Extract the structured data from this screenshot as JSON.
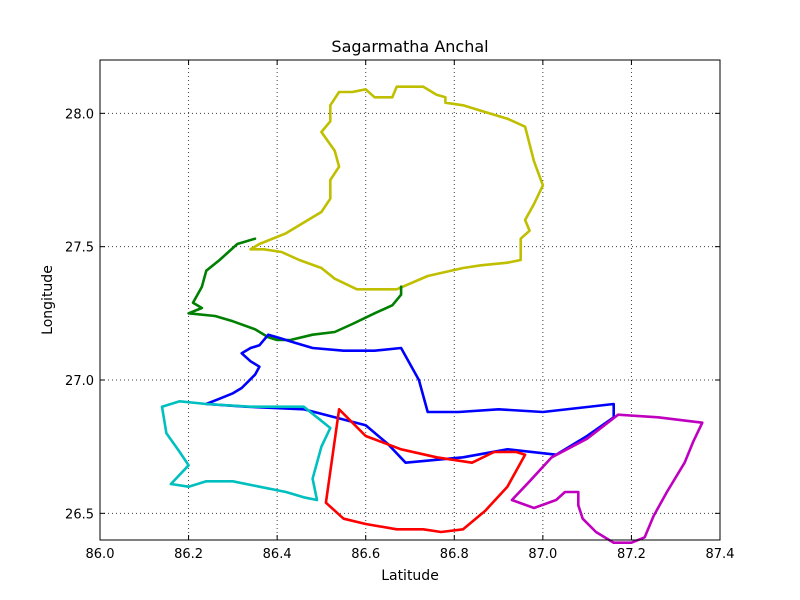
{
  "chart_data": {
    "type": "line",
    "title": "Sagarmatha Anchal",
    "xlabel": "Latitude",
    "ylabel": "Longitude",
    "xlim": [
      86.0,
      87.4
    ],
    "ylim": [
      26.4,
      28.2
    ],
    "xticks": [
      86.0,
      86.2,
      86.4,
      86.6,
      86.8,
      87.0,
      87.2,
      87.4
    ],
    "xtick_labels": [
      "86.0",
      "86.2",
      "86.4",
      "86.6",
      "86.8",
      "87.0",
      "87.2",
      "87.4"
    ],
    "yticks": [
      26.5,
      27.0,
      27.5,
      28.0
    ],
    "ytick_labels": [
      "26.5",
      "27.0",
      "27.5",
      "28.0"
    ],
    "grid": true,
    "series": [
      {
        "color": "#bfbf00",
        "points": [
          [
            86.34,
            27.49
          ],
          [
            86.36,
            27.51
          ],
          [
            86.42,
            27.55
          ],
          [
            86.48,
            27.61
          ],
          [
            86.5,
            27.63
          ],
          [
            86.52,
            27.68
          ],
          [
            86.52,
            27.75
          ],
          [
            86.54,
            27.8
          ],
          [
            86.53,
            27.86
          ],
          [
            86.5,
            27.93
          ],
          [
            86.52,
            27.97
          ],
          [
            86.52,
            28.03
          ],
          [
            86.54,
            28.08
          ],
          [
            86.57,
            28.08
          ],
          [
            86.6,
            28.09
          ],
          [
            86.62,
            28.06
          ],
          [
            86.66,
            28.06
          ],
          [
            86.67,
            28.1
          ],
          [
            86.73,
            28.1
          ],
          [
            86.76,
            28.07
          ],
          [
            86.78,
            28.06
          ],
          [
            86.78,
            28.04
          ],
          [
            86.82,
            28.03
          ],
          [
            86.86,
            28.01
          ],
          [
            86.92,
            27.98
          ],
          [
            86.96,
            27.95
          ],
          [
            86.98,
            27.82
          ],
          [
            87.0,
            27.73
          ],
          [
            86.98,
            27.66
          ],
          [
            86.96,
            27.6
          ],
          [
            86.97,
            27.56
          ],
          [
            86.95,
            27.53
          ],
          [
            86.95,
            27.45
          ],
          [
            86.92,
            27.44
          ],
          [
            86.86,
            27.43
          ],
          [
            86.82,
            27.42
          ],
          [
            86.74,
            27.39
          ],
          [
            86.67,
            27.34
          ],
          [
            86.64,
            27.34
          ],
          [
            86.58,
            27.34
          ],
          [
            86.53,
            27.38
          ],
          [
            86.5,
            27.42
          ],
          [
            86.45,
            27.45
          ],
          [
            86.41,
            27.48
          ],
          [
            86.37,
            27.49
          ],
          [
            86.34,
            27.49
          ]
        ]
      },
      {
        "color": "#008000",
        "points": [
          [
            86.35,
            27.53
          ],
          [
            86.31,
            27.51
          ],
          [
            86.27,
            27.45
          ],
          [
            86.24,
            27.41
          ],
          [
            86.23,
            27.35
          ],
          [
            86.21,
            27.29
          ],
          [
            86.23,
            27.27
          ],
          [
            86.2,
            27.25
          ],
          [
            86.26,
            27.24
          ],
          [
            86.3,
            27.22
          ],
          [
            86.35,
            27.19
          ],
          [
            86.38,
            27.16
          ],
          [
            86.4,
            27.15
          ],
          [
            86.43,
            27.15
          ],
          [
            86.48,
            27.17
          ],
          [
            86.53,
            27.18
          ],
          [
            86.57,
            27.21
          ],
          [
            86.62,
            27.25
          ],
          [
            86.66,
            27.28
          ],
          [
            86.68,
            27.32
          ],
          [
            86.68,
            27.35
          ]
        ]
      },
      {
        "color": "#0000ff",
        "points": [
          [
            86.38,
            27.17
          ],
          [
            86.36,
            27.13
          ],
          [
            86.34,
            27.12
          ],
          [
            86.32,
            27.1
          ],
          [
            86.34,
            27.07
          ],
          [
            86.36,
            27.05
          ],
          [
            86.35,
            27.02
          ],
          [
            86.32,
            26.97
          ],
          [
            86.3,
            26.95
          ],
          [
            86.27,
            26.93
          ],
          [
            86.24,
            26.91
          ],
          [
            86.33,
            26.9
          ],
          [
            86.46,
            26.89
          ],
          [
            86.53,
            26.86
          ],
          [
            86.6,
            26.83
          ],
          [
            86.65,
            26.76
          ],
          [
            86.69,
            26.69
          ],
          [
            86.82,
            26.71
          ],
          [
            86.92,
            26.74
          ],
          [
            87.03,
            26.72
          ],
          [
            87.1,
            26.79
          ],
          [
            87.16,
            26.86
          ],
          [
            87.16,
            26.91
          ],
          [
            87.0,
            26.88
          ],
          [
            86.9,
            26.89
          ],
          [
            86.81,
            26.88
          ],
          [
            86.74,
            26.88
          ],
          [
            86.72,
            27.0
          ],
          [
            86.68,
            27.12
          ],
          [
            86.62,
            27.11
          ],
          [
            86.55,
            27.11
          ],
          [
            86.48,
            27.12
          ],
          [
            86.44,
            27.14
          ],
          [
            86.4,
            27.16
          ],
          [
            86.38,
            27.17
          ]
        ]
      },
      {
        "color": "#00bfbf",
        "points": [
          [
            86.46,
            26.9
          ],
          [
            86.34,
            26.9
          ],
          [
            86.24,
            26.91
          ],
          [
            86.18,
            26.92
          ],
          [
            86.14,
            26.9
          ],
          [
            86.15,
            26.8
          ],
          [
            86.18,
            26.73
          ],
          [
            86.2,
            26.68
          ],
          [
            86.16,
            26.61
          ],
          [
            86.2,
            26.6
          ],
          [
            86.24,
            26.62
          ],
          [
            86.3,
            26.62
          ],
          [
            86.36,
            26.6
          ],
          [
            86.42,
            26.58
          ],
          [
            86.46,
            26.56
          ],
          [
            86.49,
            26.55
          ],
          [
            86.48,
            26.63
          ],
          [
            86.5,
            26.75
          ],
          [
            86.52,
            26.82
          ],
          [
            86.46,
            26.9
          ]
        ]
      },
      {
        "color": "#ff0000",
        "points": [
          [
            86.54,
            26.89
          ],
          [
            86.6,
            26.79
          ],
          [
            86.68,
            26.74
          ],
          [
            86.76,
            26.71
          ],
          [
            86.84,
            26.69
          ],
          [
            86.89,
            26.73
          ],
          [
            86.94,
            26.73
          ],
          [
            86.96,
            26.72
          ],
          [
            86.92,
            26.6
          ],
          [
            86.87,
            26.51
          ],
          [
            86.82,
            26.44
          ],
          [
            86.77,
            26.43
          ],
          [
            86.73,
            26.44
          ],
          [
            86.67,
            26.44
          ],
          [
            86.6,
            26.46
          ],
          [
            86.55,
            26.48
          ],
          [
            86.51,
            26.54
          ],
          [
            86.54,
            26.89
          ]
        ]
      },
      {
        "color": "#bf00bf",
        "points": [
          [
            86.93,
            26.55
          ],
          [
            86.97,
            26.62
          ],
          [
            87.02,
            26.71
          ],
          [
            87.1,
            26.78
          ],
          [
            87.17,
            26.87
          ],
          [
            87.26,
            26.86
          ],
          [
            87.36,
            26.84
          ],
          [
            87.34,
            26.77
          ],
          [
            87.32,
            26.69
          ],
          [
            87.28,
            26.58
          ],
          [
            87.25,
            26.49
          ],
          [
            87.23,
            26.41
          ],
          [
            87.2,
            26.39
          ],
          [
            87.16,
            26.39
          ],
          [
            87.12,
            26.43
          ],
          [
            87.09,
            26.48
          ],
          [
            87.08,
            26.53
          ],
          [
            87.08,
            26.58
          ],
          [
            87.05,
            26.58
          ],
          [
            87.03,
            26.55
          ],
          [
            86.98,
            26.52
          ],
          [
            86.93,
            26.55
          ]
        ]
      }
    ]
  }
}
